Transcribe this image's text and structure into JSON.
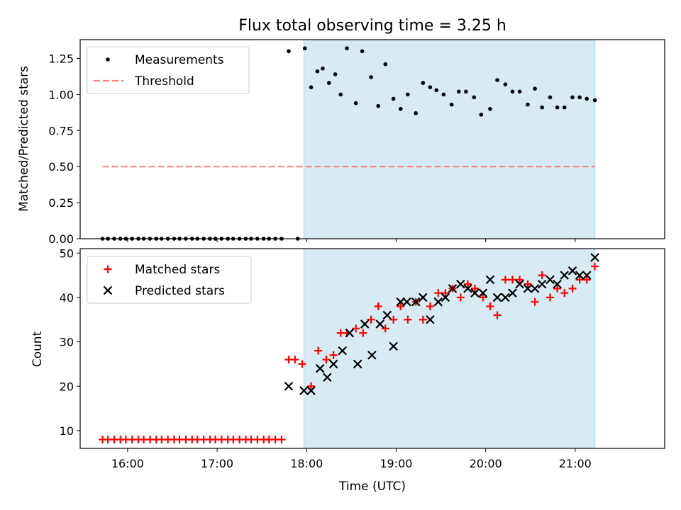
{
  "chart_data": {
    "title": "Flux total observing time = 3.25 h",
    "xlabel": "Time (UTC)",
    "x_ticks": [
      {
        "label": "16:00",
        "hour": 16.0
      },
      {
        "label": "17:00",
        "hour": 17.0
      },
      {
        "label": "18:00",
        "hour": 18.0
      },
      {
        "label": "19:00",
        "hour": 19.0
      },
      {
        "label": "20:00",
        "hour": 20.0
      },
      {
        "label": "21:00",
        "hour": 21.0
      }
    ],
    "xlim": [
      15.47,
      22.0
    ],
    "shaded_interval": {
      "start": 17.97,
      "end": 21.22,
      "color": "#add8e6"
    },
    "colors": {
      "measurements": "#000000",
      "threshold": "#ff7f7f",
      "matched": "#ff0000",
      "predicted": "#000000"
    },
    "top": {
      "type": "scatter",
      "ylabel": "Matched/Predicted stars",
      "ylim": [
        0,
        1.38
      ],
      "y_ticks": [
        "0.00",
        "0.25",
        "0.50",
        "0.75",
        "1.00",
        "1.25"
      ],
      "legend": {
        "measurements": "Measurements",
        "threshold": "Threshold"
      },
      "threshold": {
        "y": 0.5,
        "x_start": 15.72,
        "x_end": 21.22
      },
      "x": [
        15.72,
        15.78,
        15.85,
        15.92,
        15.98,
        16.05,
        16.12,
        16.18,
        16.25,
        16.32,
        16.38,
        16.45,
        16.52,
        16.58,
        16.65,
        16.72,
        16.78,
        16.85,
        16.92,
        16.98,
        17.05,
        17.12,
        17.18,
        17.25,
        17.32,
        17.38,
        17.45,
        17.52,
        17.58,
        17.65,
        17.72,
        17.8,
        17.9,
        17.98,
        18.05,
        18.12,
        18.18,
        18.25,
        18.32,
        18.38,
        18.45,
        18.55,
        18.62,
        18.72,
        18.8,
        18.88,
        18.97,
        19.05,
        19.13,
        19.22,
        19.3,
        19.38,
        19.45,
        19.53,
        19.62,
        19.7,
        19.78,
        19.87,
        19.95,
        20.05,
        20.13,
        20.22,
        20.3,
        20.38,
        20.47,
        20.55,
        20.63,
        20.72,
        20.8,
        20.88,
        20.97,
        21.05,
        21.13,
        21.22
      ],
      "y": [
        0,
        0,
        0,
        0,
        0,
        0,
        0,
        0,
        0,
        0,
        0,
        0,
        0,
        0,
        0,
        0,
        0,
        0,
        0,
        0,
        0,
        0,
        0,
        0,
        0,
        0,
        0,
        0,
        0,
        0,
        0,
        1.3,
        0,
        1.32,
        1.05,
        1.16,
        1.18,
        1.08,
        1.14,
        1.0,
        1.32,
        0.94,
        1.3,
        1.12,
        0.92,
        1.21,
        0.97,
        0.9,
        1.0,
        0.87,
        1.08,
        1.05,
        1.03,
        1.0,
        0.93,
        1.02,
        1.02,
        0.98,
        0.86,
        0.9,
        1.1,
        1.07,
        1.02,
        1.02,
        0.93,
        1.04,
        0.91,
        0.98,
        0.91,
        0.91,
        0.98,
        0.98,
        0.97,
        0.96
      ]
    },
    "bottom": {
      "type": "scatter",
      "ylabel": "Count",
      "ylim": [
        6,
        51
      ],
      "y_ticks": [
        "10",
        "20",
        "30",
        "40",
        "50"
      ],
      "legend": {
        "matched": "Matched stars",
        "predicted": "Predicted stars"
      },
      "matched": {
        "x": [
          15.72,
          15.78,
          15.85,
          15.92,
          15.98,
          16.05,
          16.12,
          16.18,
          16.25,
          16.32,
          16.38,
          16.45,
          16.52,
          16.58,
          16.65,
          16.72,
          16.78,
          16.85,
          16.92,
          16.98,
          17.05,
          17.12,
          17.18,
          17.25,
          17.32,
          17.38,
          17.45,
          17.52,
          17.58,
          17.65,
          17.72,
          17.8,
          17.87,
          17.95,
          18.05,
          18.13,
          18.22,
          18.3,
          18.38,
          18.45,
          18.55,
          18.63,
          18.72,
          18.8,
          18.88,
          18.97,
          19.05,
          19.13,
          19.22,
          19.3,
          19.38,
          19.47,
          19.55,
          19.63,
          19.72,
          19.8,
          19.88,
          19.97,
          20.05,
          20.13,
          20.22,
          20.3,
          20.38,
          20.47,
          20.55,
          20.63,
          20.72,
          20.8,
          20.88,
          20.97,
          21.05,
          21.13,
          21.22
        ],
        "y": [
          8,
          8,
          8,
          8,
          8,
          8,
          8,
          8,
          8,
          8,
          8,
          8,
          8,
          8,
          8,
          8,
          8,
          8,
          8,
          8,
          8,
          8,
          8,
          8,
          8,
          8,
          8,
          8,
          8,
          8,
          8,
          26,
          26,
          25,
          20,
          28,
          26,
          27,
          32,
          32,
          33,
          32,
          35,
          38,
          33,
          35,
          38,
          35,
          39,
          35,
          38,
          41,
          41,
          42,
          40,
          43,
          42,
          40,
          38,
          36,
          44,
          44,
          44,
          43,
          39,
          45,
          40,
          42,
          41,
          42,
          44,
          44,
          47
        ]
      },
      "predicted": {
        "x": [
          17.8,
          17.97,
          18.05,
          18.15,
          18.23,
          18.3,
          18.4,
          18.48,
          18.57,
          18.65,
          18.73,
          18.82,
          18.9,
          18.97,
          19.05,
          19.12,
          19.22,
          19.3,
          19.38,
          19.47,
          19.55,
          19.63,
          19.72,
          19.8,
          19.88,
          19.97,
          20.05,
          20.13,
          20.22,
          20.3,
          20.38,
          20.47,
          20.55,
          20.63,
          20.72,
          20.8,
          20.88,
          20.97,
          21.05,
          21.13,
          21.22
        ],
        "y": [
          20,
          19,
          19,
          24,
          22,
          25,
          28,
          32,
          25,
          34,
          27,
          34,
          36,
          29,
          39,
          39,
          39,
          40,
          35,
          39,
          40,
          42,
          43,
          42,
          41,
          41,
          44,
          40,
          40,
          41,
          43,
          42,
          42,
          43,
          44,
          43,
          45,
          46,
          45,
          45,
          49
        ]
      }
    }
  }
}
